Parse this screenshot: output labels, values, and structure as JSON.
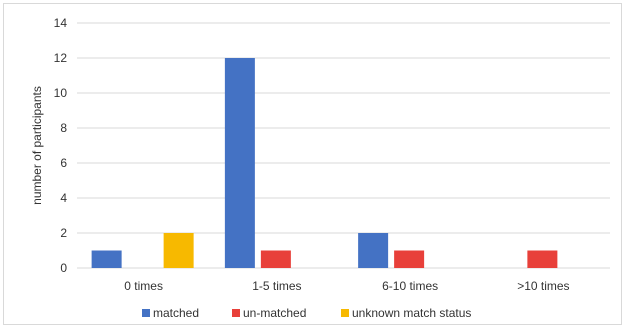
{
  "chart_data": {
    "type": "bar",
    "categories": [
      "0 times",
      "1-5 times",
      "6-10 times",
      ">10 times"
    ],
    "series": [
      {
        "name": "matched",
        "color": "#4472c4",
        "values": [
          1,
          12,
          2,
          0
        ]
      },
      {
        "name": "un-matched",
        "color": "#e8403a",
        "values": [
          0,
          1,
          1,
          1
        ]
      },
      {
        "name": "unknown match status",
        "color": "#f7b900",
        "values": [
          2,
          0,
          0,
          0
        ]
      }
    ],
    "xlabel": "",
    "ylabel": "number of participants",
    "ylim": [
      0,
      14
    ],
    "yticks": [
      0,
      2,
      4,
      6,
      8,
      10,
      12,
      14
    ],
    "grid": true,
    "legend_position": "bottom"
  }
}
